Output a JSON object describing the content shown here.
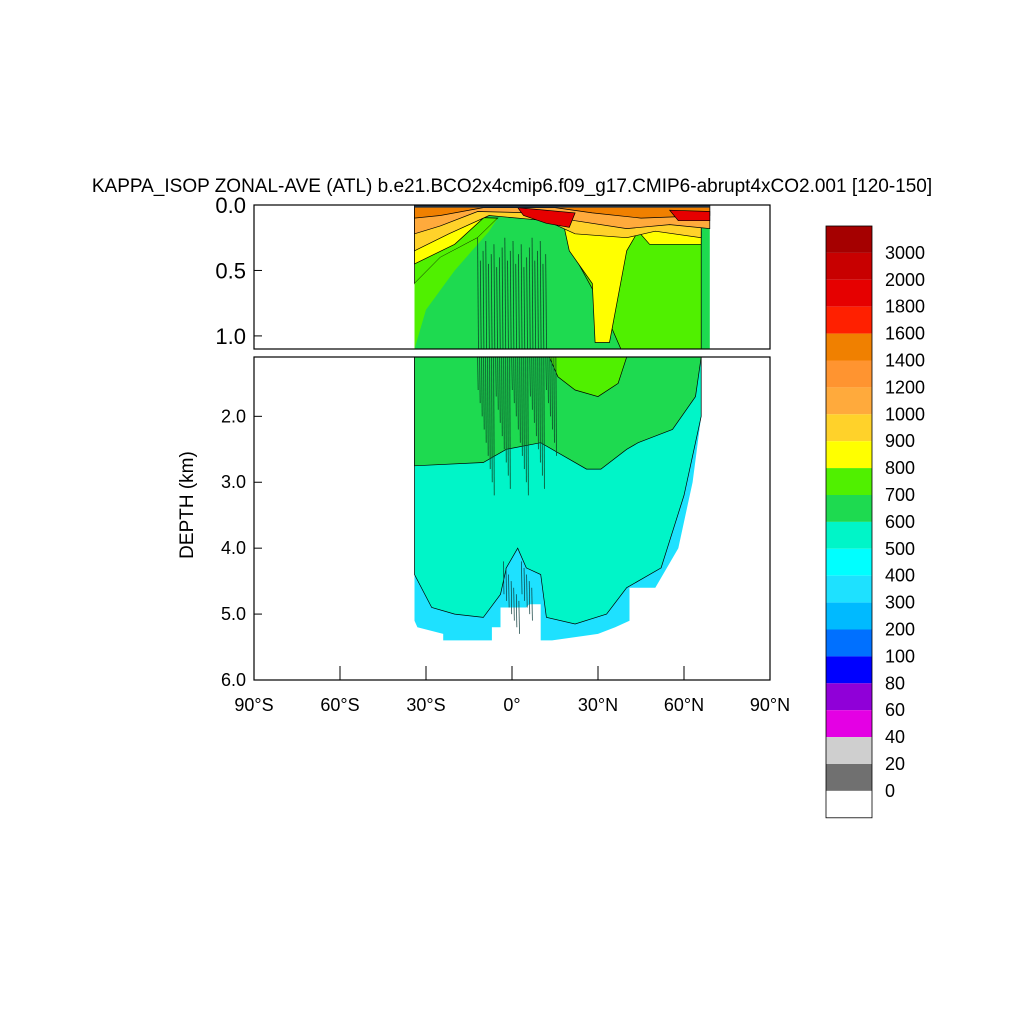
{
  "chart_data": {
    "type": "heatmap",
    "title": "KAPPA_ISOP ZONAL-AVE (ATL) b.e21.BCO2x4cmip6.f09_g17.CMIP6-abrupt4xCO2.001 [120-150]",
    "ylabel": "DEPTH (km)",
    "xlabel": "",
    "xlim": [
      -90,
      90
    ],
    "ylim_upper": [
      0.0,
      1.1
    ],
    "ylim_lower": [
      1.1,
      6.0
    ],
    "x_ticks": [
      -90,
      -60,
      -30,
      0,
      30,
      60,
      90
    ],
    "x_tick_labels": [
      "90°S",
      "60°S",
      "30°S",
      "0°",
      "30°N",
      "60°N",
      "90°N"
    ],
    "y_ticks_upper": [
      0.0,
      0.5,
      1.0
    ],
    "y_tick_labels_upper": [
      "0.0",
      "0.5",
      "1.0"
    ],
    "y_ticks_lower": [
      2.0,
      3.0,
      4.0,
      5.0,
      6.0
    ],
    "y_tick_labels_lower": [
      "2.0",
      "3.0",
      "4.0",
      "5.0",
      "6.0"
    ],
    "colorbar": {
      "levels": [
        "3000",
        "2000",
        "1800",
        "1600",
        "1400",
        "1200",
        "1000",
        "900",
        "800",
        "700",
        "600",
        "500",
        "400",
        "300",
        "200",
        "100",
        "80",
        "60",
        "40",
        "20",
        "0"
      ],
      "colors": [
        "#a50000",
        "#c80000",
        "#e60000",
        "#ff2000",
        "#f08000",
        "#ff9430",
        "#ffaa3c",
        "#ffd22a",
        "#ffff00",
        "#50f000",
        "#1eda50",
        "#00f5c8",
        "#00ffff",
        "#1ee1ff",
        "#00baff",
        "#0070ff",
        "#0000ff",
        "#9000d8",
        "#e400e4",
        "#cfcfcf",
        "#707070",
        "#ffffff"
      ]
    },
    "regions": {
      "ocean_color": "#00f5c8",
      "green_color": "#1eda50",
      "light_green_color": "#50f000",
      "yellow_color": "#ffff00",
      "gold_color": "#ffd22a",
      "orange_color": "#ffaa3c",
      "dark_orange_color": "#f08000",
      "red_color": "#e60000",
      "deep_color": "#1ee1ff"
    }
  }
}
